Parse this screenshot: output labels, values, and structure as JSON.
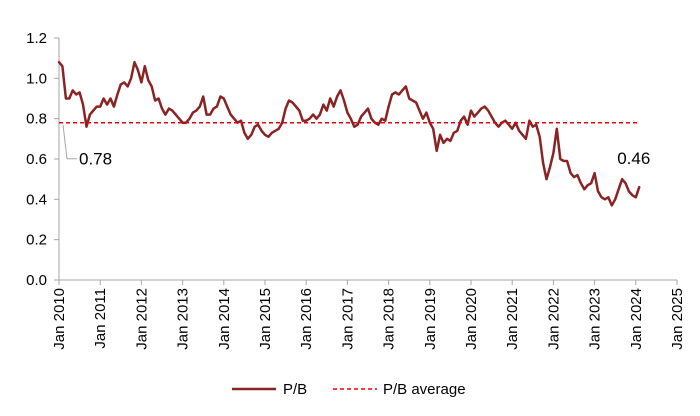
{
  "colors": {
    "pb_line": "#8B2323",
    "avg_line": "#E3000F",
    "axis": "#A6A6A6",
    "callout": "#A6A6A6"
  },
  "chart_data": {
    "type": "line",
    "x_ticks": [
      "Jan 2010",
      "Jan 2011",
      "Jan 2012",
      "Jan 2013",
      "Jan 2014",
      "Jan 2015",
      "Jan 2016",
      "Jan 2017",
      "Jan 2018",
      "Jan 2019",
      "Jan 2020",
      "Jan 2021",
      "Jan 2022",
      "Jan 2023",
      "Jan 2024",
      "Jan 2025"
    ],
    "y_ticks": [
      "0.0",
      "0.2",
      "0.4",
      "0.6",
      "0.8",
      "1.0",
      "1.2"
    ],
    "ylim": [
      0,
      1.2
    ],
    "xlim": [
      "2010-01",
      "2025-01"
    ],
    "grid": false,
    "legend_position": "bottom",
    "series": [
      {
        "name": "P/B",
        "style": "solid",
        "x": [
          "2010-01",
          "2010-02",
          "2010-03",
          "2010-04",
          "2010-05",
          "2010-06",
          "2010-07",
          "2010-08",
          "2010-09",
          "2010-10",
          "2010-11",
          "2010-12",
          "2011-01",
          "2011-02",
          "2011-03",
          "2011-04",
          "2011-05",
          "2011-06",
          "2011-07",
          "2011-08",
          "2011-09",
          "2011-10",
          "2011-11",
          "2011-12",
          "2012-01",
          "2012-02",
          "2012-03",
          "2012-04",
          "2012-05",
          "2012-06",
          "2012-07",
          "2012-08",
          "2012-09",
          "2012-10",
          "2012-11",
          "2012-12",
          "2013-01",
          "2013-02",
          "2013-03",
          "2013-04",
          "2013-05",
          "2013-06",
          "2013-07",
          "2013-08",
          "2013-09",
          "2013-10",
          "2013-11",
          "2013-12",
          "2014-01",
          "2014-02",
          "2014-03",
          "2014-04",
          "2014-05",
          "2014-06",
          "2014-07",
          "2014-08",
          "2014-09",
          "2014-10",
          "2014-11",
          "2014-12",
          "2015-01",
          "2015-02",
          "2015-03",
          "2015-04",
          "2015-05",
          "2015-06",
          "2015-07",
          "2015-08",
          "2015-09",
          "2015-10",
          "2015-11",
          "2015-12",
          "2016-01",
          "2016-02",
          "2016-03",
          "2016-04",
          "2016-05",
          "2016-06",
          "2016-07",
          "2016-08",
          "2016-09",
          "2016-10",
          "2016-11",
          "2016-12",
          "2017-01",
          "2017-02",
          "2017-03",
          "2017-04",
          "2017-05",
          "2017-06",
          "2017-07",
          "2017-08",
          "2017-09",
          "2017-10",
          "2017-11",
          "2017-12",
          "2018-01",
          "2018-02",
          "2018-03",
          "2018-04",
          "2018-05",
          "2018-06",
          "2018-07",
          "2018-08",
          "2018-09",
          "2018-10",
          "2018-11",
          "2018-12",
          "2019-01",
          "2019-02",
          "2019-03",
          "2019-04",
          "2019-05",
          "2019-06",
          "2019-07",
          "2019-08",
          "2019-09",
          "2019-10",
          "2019-11",
          "2019-12",
          "2020-01",
          "2020-02",
          "2020-03",
          "2020-04",
          "2020-05",
          "2020-06",
          "2020-07",
          "2020-08",
          "2020-09",
          "2020-10",
          "2020-11",
          "2020-12",
          "2021-01",
          "2021-02",
          "2021-03",
          "2021-04",
          "2021-05",
          "2021-06",
          "2021-07",
          "2021-08",
          "2021-09",
          "2021-10",
          "2021-11",
          "2021-12",
          "2022-01",
          "2022-02",
          "2022-03",
          "2022-04",
          "2022-05",
          "2022-06",
          "2022-07",
          "2022-08",
          "2022-09",
          "2022-10",
          "2022-11",
          "2022-12",
          "2023-01",
          "2023-02",
          "2023-03",
          "2023-04",
          "2023-05",
          "2023-06",
          "2023-07",
          "2023-08",
          "2023-09",
          "2023-10",
          "2023-11",
          "2023-12",
          "2024-01",
          "2024-02"
        ],
        "values": [
          1.08,
          1.06,
          0.9,
          0.9,
          0.94,
          0.92,
          0.93,
          0.87,
          0.76,
          0.82,
          0.84,
          0.86,
          0.86,
          0.9,
          0.87,
          0.9,
          0.86,
          0.92,
          0.97,
          0.98,
          0.96,
          1.0,
          1.08,
          1.04,
          0.98,
          1.06,
          0.99,
          0.96,
          0.89,
          0.9,
          0.85,
          0.82,
          0.85,
          0.84,
          0.82,
          0.8,
          0.78,
          0.78,
          0.8,
          0.83,
          0.84,
          0.86,
          0.91,
          0.82,
          0.82,
          0.85,
          0.86,
          0.91,
          0.9,
          0.86,
          0.82,
          0.8,
          0.78,
          0.79,
          0.73,
          0.7,
          0.72,
          0.76,
          0.77,
          0.74,
          0.72,
          0.71,
          0.73,
          0.74,
          0.75,
          0.78,
          0.85,
          0.89,
          0.88,
          0.86,
          0.84,
          0.79,
          0.79,
          0.8,
          0.82,
          0.8,
          0.82,
          0.87,
          0.84,
          0.9,
          0.86,
          0.91,
          0.94,
          0.89,
          0.83,
          0.8,
          0.76,
          0.77,
          0.81,
          0.83,
          0.85,
          0.8,
          0.78,
          0.77,
          0.8,
          0.79,
          0.86,
          0.92,
          0.93,
          0.92,
          0.94,
          0.96,
          0.9,
          0.89,
          0.88,
          0.84,
          0.8,
          0.83,
          0.78,
          0.75,
          0.64,
          0.72,
          0.68,
          0.7,
          0.69,
          0.73,
          0.74,
          0.79,
          0.81,
          0.77,
          0.84,
          0.81,
          0.83,
          0.85,
          0.86,
          0.84,
          0.81,
          0.78,
          0.76,
          0.78,
          0.79,
          0.77,
          0.75,
          0.78,
          0.74,
          0.72,
          0.7,
          0.79,
          0.76,
          0.77,
          0.71,
          0.58,
          0.5,
          0.56,
          0.63,
          0.75,
          0.6,
          0.59,
          0.59,
          0.53,
          0.51,
          0.52,
          0.48,
          0.45,
          0.47,
          0.48,
          0.53,
          0.44,
          0.41,
          0.4,
          0.41,
          0.37,
          0.4,
          0.45,
          0.5,
          0.48,
          0.44,
          0.42,
          0.41,
          0.46
        ]
      },
      {
        "name": "P/B average",
        "style": "dashed",
        "x": [
          "2010-01",
          "2024-02"
        ],
        "values": [
          0.78,
          0.78
        ]
      }
    ],
    "annotations": [
      {
        "text": "0.78",
        "x": "2010-01",
        "y": 0.78
      },
      {
        "text": "0.46",
        "x": "2024-02",
        "y": 0.46
      }
    ]
  }
}
